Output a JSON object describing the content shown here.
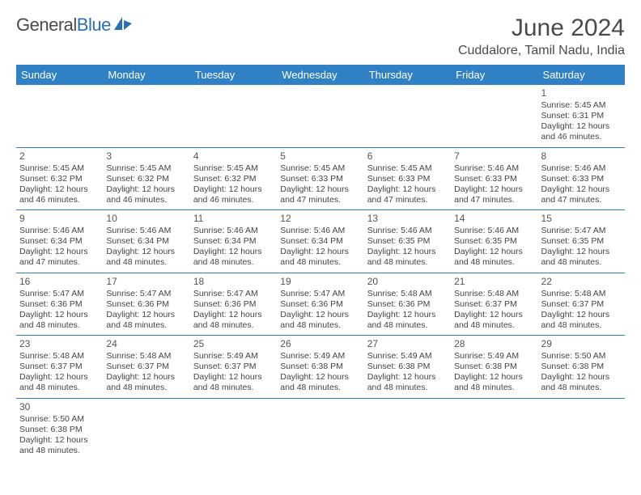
{
  "brand": {
    "part1": "General",
    "part2": "Blue"
  },
  "title": "June 2024",
  "location": "Cuddalore, Tamil Nadu, India",
  "colors": {
    "header_bg": "#3080c5",
    "header_text": "#ffffff",
    "border": "#3080c5",
    "text": "#444444",
    "title": "#4a4a4a"
  },
  "day_headers": [
    "Sunday",
    "Monday",
    "Tuesday",
    "Wednesday",
    "Thursday",
    "Friday",
    "Saturday"
  ],
  "weeks": [
    [
      null,
      null,
      null,
      null,
      null,
      null,
      {
        "n": "1",
        "sr": "Sunrise: 5:45 AM",
        "ss": "Sunset: 6:31 PM",
        "d1": "Daylight: 12 hours",
        "d2": "and 46 minutes."
      }
    ],
    [
      {
        "n": "2",
        "sr": "Sunrise: 5:45 AM",
        "ss": "Sunset: 6:32 PM",
        "d1": "Daylight: 12 hours",
        "d2": "and 46 minutes."
      },
      {
        "n": "3",
        "sr": "Sunrise: 5:45 AM",
        "ss": "Sunset: 6:32 PM",
        "d1": "Daylight: 12 hours",
        "d2": "and 46 minutes."
      },
      {
        "n": "4",
        "sr": "Sunrise: 5:45 AM",
        "ss": "Sunset: 6:32 PM",
        "d1": "Daylight: 12 hours",
        "d2": "and 46 minutes."
      },
      {
        "n": "5",
        "sr": "Sunrise: 5:45 AM",
        "ss": "Sunset: 6:33 PM",
        "d1": "Daylight: 12 hours",
        "d2": "and 47 minutes."
      },
      {
        "n": "6",
        "sr": "Sunrise: 5:45 AM",
        "ss": "Sunset: 6:33 PM",
        "d1": "Daylight: 12 hours",
        "d2": "and 47 minutes."
      },
      {
        "n": "7",
        "sr": "Sunrise: 5:46 AM",
        "ss": "Sunset: 6:33 PM",
        "d1": "Daylight: 12 hours",
        "d2": "and 47 minutes."
      },
      {
        "n": "8",
        "sr": "Sunrise: 5:46 AM",
        "ss": "Sunset: 6:33 PM",
        "d1": "Daylight: 12 hours",
        "d2": "and 47 minutes."
      }
    ],
    [
      {
        "n": "9",
        "sr": "Sunrise: 5:46 AM",
        "ss": "Sunset: 6:34 PM",
        "d1": "Daylight: 12 hours",
        "d2": "and 47 minutes."
      },
      {
        "n": "10",
        "sr": "Sunrise: 5:46 AM",
        "ss": "Sunset: 6:34 PM",
        "d1": "Daylight: 12 hours",
        "d2": "and 48 minutes."
      },
      {
        "n": "11",
        "sr": "Sunrise: 5:46 AM",
        "ss": "Sunset: 6:34 PM",
        "d1": "Daylight: 12 hours",
        "d2": "and 48 minutes."
      },
      {
        "n": "12",
        "sr": "Sunrise: 5:46 AM",
        "ss": "Sunset: 6:34 PM",
        "d1": "Daylight: 12 hours",
        "d2": "and 48 minutes."
      },
      {
        "n": "13",
        "sr": "Sunrise: 5:46 AM",
        "ss": "Sunset: 6:35 PM",
        "d1": "Daylight: 12 hours",
        "d2": "and 48 minutes."
      },
      {
        "n": "14",
        "sr": "Sunrise: 5:46 AM",
        "ss": "Sunset: 6:35 PM",
        "d1": "Daylight: 12 hours",
        "d2": "and 48 minutes."
      },
      {
        "n": "15",
        "sr": "Sunrise: 5:47 AM",
        "ss": "Sunset: 6:35 PM",
        "d1": "Daylight: 12 hours",
        "d2": "and 48 minutes."
      }
    ],
    [
      {
        "n": "16",
        "sr": "Sunrise: 5:47 AM",
        "ss": "Sunset: 6:36 PM",
        "d1": "Daylight: 12 hours",
        "d2": "and 48 minutes."
      },
      {
        "n": "17",
        "sr": "Sunrise: 5:47 AM",
        "ss": "Sunset: 6:36 PM",
        "d1": "Daylight: 12 hours",
        "d2": "and 48 minutes."
      },
      {
        "n": "18",
        "sr": "Sunrise: 5:47 AM",
        "ss": "Sunset: 6:36 PM",
        "d1": "Daylight: 12 hours",
        "d2": "and 48 minutes."
      },
      {
        "n": "19",
        "sr": "Sunrise: 5:47 AM",
        "ss": "Sunset: 6:36 PM",
        "d1": "Daylight: 12 hours",
        "d2": "and 48 minutes."
      },
      {
        "n": "20",
        "sr": "Sunrise: 5:48 AM",
        "ss": "Sunset: 6:36 PM",
        "d1": "Daylight: 12 hours",
        "d2": "and 48 minutes."
      },
      {
        "n": "21",
        "sr": "Sunrise: 5:48 AM",
        "ss": "Sunset: 6:37 PM",
        "d1": "Daylight: 12 hours",
        "d2": "and 48 minutes."
      },
      {
        "n": "22",
        "sr": "Sunrise: 5:48 AM",
        "ss": "Sunset: 6:37 PM",
        "d1": "Daylight: 12 hours",
        "d2": "and 48 minutes."
      }
    ],
    [
      {
        "n": "23",
        "sr": "Sunrise: 5:48 AM",
        "ss": "Sunset: 6:37 PM",
        "d1": "Daylight: 12 hours",
        "d2": "and 48 minutes."
      },
      {
        "n": "24",
        "sr": "Sunrise: 5:48 AM",
        "ss": "Sunset: 6:37 PM",
        "d1": "Daylight: 12 hours",
        "d2": "and 48 minutes."
      },
      {
        "n": "25",
        "sr": "Sunrise: 5:49 AM",
        "ss": "Sunset: 6:37 PM",
        "d1": "Daylight: 12 hours",
        "d2": "and 48 minutes."
      },
      {
        "n": "26",
        "sr": "Sunrise: 5:49 AM",
        "ss": "Sunset: 6:38 PM",
        "d1": "Daylight: 12 hours",
        "d2": "and 48 minutes."
      },
      {
        "n": "27",
        "sr": "Sunrise: 5:49 AM",
        "ss": "Sunset: 6:38 PM",
        "d1": "Daylight: 12 hours",
        "d2": "and 48 minutes."
      },
      {
        "n": "28",
        "sr": "Sunrise: 5:49 AM",
        "ss": "Sunset: 6:38 PM",
        "d1": "Daylight: 12 hours",
        "d2": "and 48 minutes."
      },
      {
        "n": "29",
        "sr": "Sunrise: 5:50 AM",
        "ss": "Sunset: 6:38 PM",
        "d1": "Daylight: 12 hours",
        "d2": "and 48 minutes."
      }
    ],
    [
      {
        "n": "30",
        "sr": "Sunrise: 5:50 AM",
        "ss": "Sunset: 6:38 PM",
        "d1": "Daylight: 12 hours",
        "d2": "and 48 minutes."
      },
      null,
      null,
      null,
      null,
      null,
      null
    ]
  ]
}
